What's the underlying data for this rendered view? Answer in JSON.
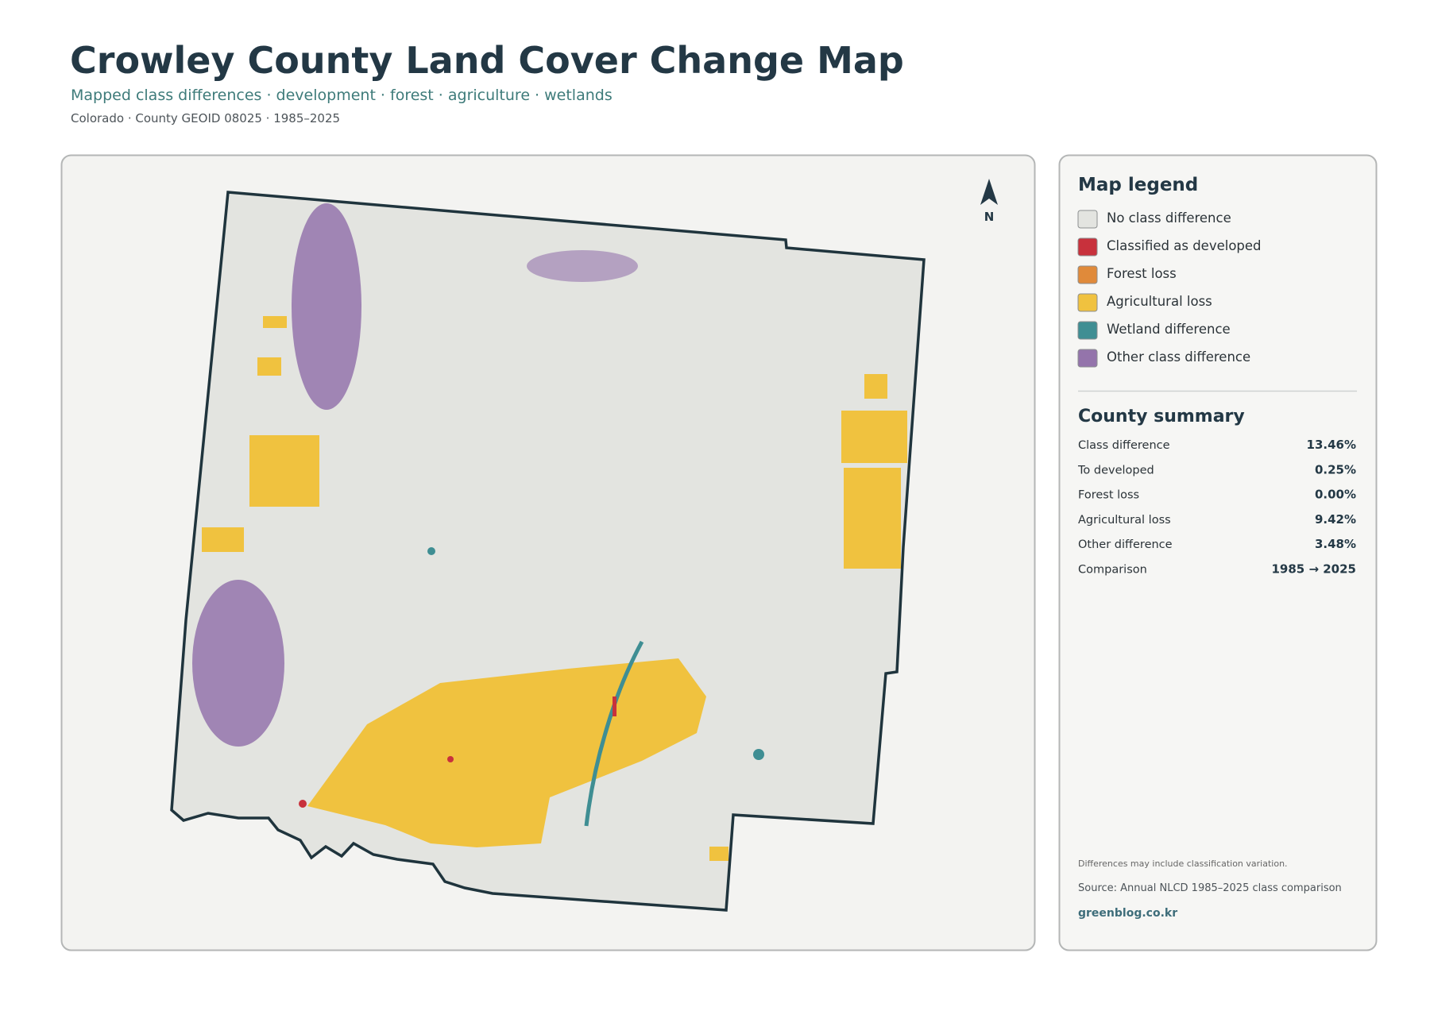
{
  "header": {
    "title": "Crowley County Land Cover Change Map",
    "subtitle": "Mapped class differences · development · forest · agriculture · wetlands",
    "meta": "Colorado · County GEOID 08025 · 1985–2025"
  },
  "map": {
    "north_label": "N"
  },
  "legend": {
    "title": "Map legend",
    "items": [
      {
        "label": "No class difference",
        "color": "#e3e4e0"
      },
      {
        "label": "Classified as developed",
        "color": "#c8313c"
      },
      {
        "label": "Forest loss",
        "color": "#e08a3a"
      },
      {
        "label": "Agricultural loss",
        "color": "#f0c23f"
      },
      {
        "label": "Wetland difference",
        "color": "#3f8e93"
      },
      {
        "label": "Other class difference",
        "color": "#9474ab"
      }
    ]
  },
  "summary": {
    "title": "County summary",
    "rows": [
      [
        "Class difference",
        "13.46%"
      ],
      [
        "To developed",
        "0.25%"
      ],
      [
        "Forest loss",
        "0.00%"
      ],
      [
        "Agricultural loss",
        "9.42%"
      ],
      [
        "Other difference",
        "3.48%"
      ],
      [
        "Comparison",
        "1985 → 2025"
      ]
    ]
  },
  "notes": {
    "note": "Differences may include classification variation.",
    "source": "Source: Annual NLCD 1985–2025 class comparison",
    "credit": "greenblog.co.kr"
  }
}
